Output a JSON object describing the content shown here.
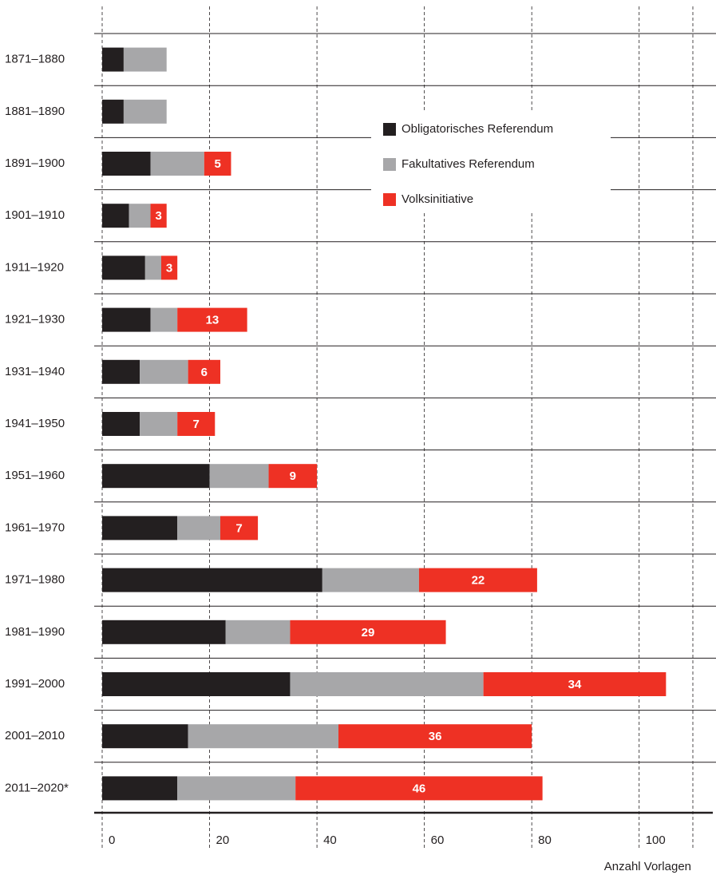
{
  "chart_data": {
    "type": "stacked-barh",
    "categories": [
      "1871–1880",
      "1881–1890",
      "1891–1900",
      "1901–1910",
      "1911–1920",
      "1921–1930",
      "1931–1940",
      "1941–1950",
      "1951–1960",
      "1961–1970",
      "1971–1980",
      "1981–1990",
      "1991–2000",
      "2001–2010",
      "2011–2020*"
    ],
    "series": [
      {
        "name": "Obligatorisches Referendum",
        "color": "#231f20",
        "values": [
          4,
          4,
          9,
          5,
          8,
          9,
          7,
          7,
          20,
          14,
          41,
          23,
          35,
          16,
          14
        ]
      },
      {
        "name": "Fakultatives Referendum",
        "color": "#a7a7a9",
        "values": [
          8,
          8,
          10,
          4,
          3,
          5,
          9,
          7,
          11,
          8,
          18,
          12,
          36,
          28,
          22
        ]
      },
      {
        "name": "Volksinitiative",
        "color": "#ee3124",
        "values": [
          null,
          null,
          5,
          3,
          3,
          13,
          6,
          7,
          9,
          7,
          22,
          29,
          34,
          36,
          46
        ],
        "show_labels": true
      }
    ],
    "xlabel": "Anzahl Vorlagen",
    "xlim": [
      0,
      110
    ],
    "xticks": [
      0,
      20,
      40,
      60,
      80,
      100
    ],
    "grid": true,
    "legend": "upper right"
  }
}
